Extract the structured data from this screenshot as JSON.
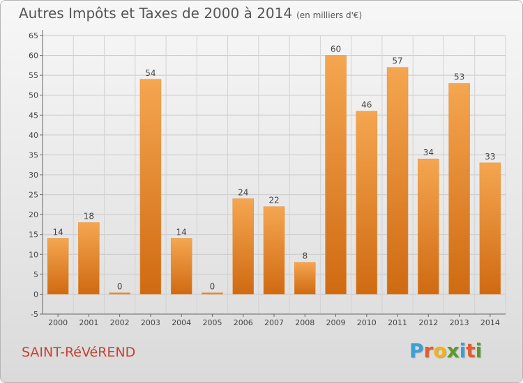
{
  "title": "Autres Impôts et Taxes de 2000 à 2014",
  "unit": "(en milliers d'€)",
  "commune": "SAINT-RéVéREND",
  "brand": {
    "letters": [
      "P",
      "r",
      "o",
      "x",
      "i",
      "t",
      "i"
    ],
    "colors": [
      "#3aa0d8",
      "#e35d2f",
      "#f2b21b",
      "#5a9a2a",
      "#3aa0d8",
      "#e35d2f",
      "#5a9a2a"
    ]
  },
  "chart_data": {
    "type": "bar",
    "categories": [
      "2000",
      "2001",
      "2002",
      "2003",
      "2004",
      "2005",
      "2006",
      "2007",
      "2008",
      "2009",
      "2010",
      "2011",
      "2012",
      "2013",
      "2014"
    ],
    "values": [
      14,
      18,
      0,
      54,
      14,
      0,
      24,
      22,
      8,
      60,
      46,
      57,
      34,
      53,
      33
    ],
    "ylim": [
      -5,
      65
    ],
    "yticks": [
      -5,
      0,
      5,
      10,
      15,
      20,
      25,
      30,
      35,
      40,
      45,
      50,
      55,
      60,
      65
    ],
    "grid": true,
    "colors": {
      "bar_top": "#f5a650",
      "bar_bottom": "#cf6a12"
    }
  }
}
